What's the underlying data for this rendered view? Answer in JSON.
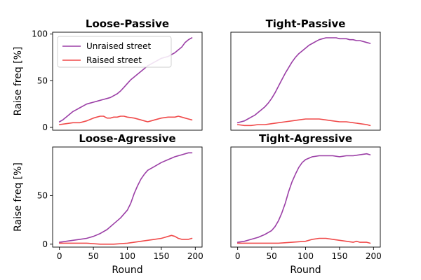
{
  "chart_data": [
    {
      "type": "line",
      "title": "Loose-Passive",
      "xlabel": "",
      "ylabel": "Raise freq [%]",
      "xlim": [
        -10,
        210
      ],
      "ylim": [
        -3,
        102
      ],
      "xticks": [],
      "yticks": [
        0,
        50,
        100
      ],
      "legend": "top-left",
      "series": [
        {
          "name": "Unraised street",
          "color": "#9b3fa6",
          "x": [
            0,
            5,
            10,
            15,
            20,
            25,
            30,
            35,
            40,
            45,
            50,
            55,
            60,
            65,
            70,
            75,
            80,
            85,
            90,
            95,
            100,
            105,
            110,
            115,
            120,
            125,
            130,
            135,
            140,
            145,
            150,
            155,
            160,
            165,
            170,
            175,
            180,
            185,
            190,
            195
          ],
          "y": [
            6,
            8,
            11,
            14,
            17,
            19,
            21,
            23,
            25,
            26,
            27,
            28,
            29,
            30,
            31,
            32,
            34,
            36,
            39,
            43,
            47,
            51,
            54,
            57,
            60,
            63,
            66,
            68,
            70,
            72,
            74,
            75,
            76,
            78,
            80,
            83,
            86,
            91,
            94,
            96
          ]
        },
        {
          "name": "Raised street",
          "color": "#f04a4a",
          "x": [
            0,
            10,
            20,
            30,
            40,
            50,
            55,
            60,
            65,
            70,
            75,
            80,
            85,
            90,
            95,
            100,
            110,
            120,
            125,
            130,
            135,
            140,
            150,
            160,
            165,
            170,
            175,
            180,
            185,
            190,
            195
          ],
          "y": [
            3,
            4,
            5,
            5,
            7,
            10,
            11,
            12,
            12,
            10,
            10,
            11,
            11,
            12,
            12,
            11,
            10,
            8,
            7,
            6,
            7,
            8,
            10,
            11,
            11,
            11,
            12,
            11,
            10,
            9,
            8
          ]
        }
      ]
    },
    {
      "type": "line",
      "title": "Tight-Passive",
      "xlabel": "",
      "ylabel": "",
      "xlim": [
        -10,
        210
      ],
      "ylim": [
        -3,
        102
      ],
      "xticks": [],
      "yticks": [],
      "series": [
        {
          "name": "Unraised street",
          "color": "#9b3fa6",
          "x": [
            0,
            5,
            10,
            15,
            20,
            25,
            30,
            35,
            40,
            45,
            50,
            55,
            60,
            65,
            70,
            75,
            80,
            85,
            90,
            95,
            100,
            105,
            110,
            115,
            120,
            125,
            130,
            135,
            140,
            145,
            150,
            155,
            160,
            165,
            170,
            175,
            180,
            185,
            190,
            195
          ],
          "y": [
            5,
            6,
            7,
            9,
            11,
            13,
            16,
            19,
            22,
            26,
            31,
            37,
            44,
            51,
            58,
            64,
            70,
            75,
            79,
            82,
            85,
            88,
            90,
            92,
            94,
            95,
            96,
            96,
            96,
            96,
            95,
            95,
            95,
            94,
            94,
            93,
            93,
            92,
            91,
            90
          ]
        },
        {
          "name": "Raised street",
          "color": "#f04a4a",
          "x": [
            0,
            10,
            20,
            30,
            40,
            50,
            60,
            70,
            80,
            90,
            100,
            110,
            120,
            130,
            140,
            150,
            160,
            170,
            180,
            190,
            195
          ],
          "y": [
            3,
            2,
            2,
            3,
            3,
            4,
            5,
            6,
            7,
            8,
            9,
            9,
            9,
            8,
            7,
            6,
            6,
            5,
            4,
            3,
            2
          ]
        }
      ]
    },
    {
      "type": "line",
      "title": "Loose-Agressive",
      "xlabel": "Round",
      "ylabel": "Raise freq [%]",
      "xlim": [
        -10,
        210
      ],
      "ylim": [
        -3,
        100
      ],
      "xticks": [
        0,
        50,
        100,
        150,
        200
      ],
      "yticks": [
        0,
        50
      ],
      "series": [
        {
          "name": "Unraised street",
          "color": "#9b3fa6",
          "x": [
            0,
            10,
            20,
            30,
            40,
            50,
            60,
            70,
            80,
            90,
            100,
            105,
            110,
            115,
            120,
            125,
            130,
            140,
            150,
            160,
            170,
            180,
            190,
            195
          ],
          "y": [
            2,
            3,
            4,
            5,
            6,
            8,
            11,
            15,
            21,
            27,
            35,
            42,
            52,
            60,
            67,
            72,
            76,
            80,
            84,
            87,
            90,
            92,
            94,
            94
          ]
        },
        {
          "name": "Raised street",
          "color": "#f04a4a",
          "x": [
            0,
            20,
            40,
            60,
            80,
            100,
            110,
            120,
            130,
            140,
            150,
            155,
            160,
            165,
            170,
            175,
            180,
            190,
            195
          ],
          "y": [
            1,
            1,
            1,
            0,
            0,
            1,
            2,
            3,
            4,
            5,
            6,
            7,
            8,
            9,
            8,
            6,
            5,
            5,
            6
          ]
        }
      ]
    },
    {
      "type": "line",
      "title": "Tight-Agressive",
      "xlabel": "Round",
      "ylabel": "",
      "xlim": [
        -10,
        210
      ],
      "ylim": [
        -3,
        100
      ],
      "xticks": [
        0,
        50,
        100,
        150,
        200
      ],
      "yticks": [],
      "series": [
        {
          "name": "Unraised street",
          "color": "#9b3fa6",
          "x": [
            0,
            10,
            20,
            30,
            40,
            50,
            55,
            60,
            65,
            70,
            75,
            80,
            85,
            90,
            95,
            100,
            110,
            120,
            130,
            140,
            150,
            160,
            170,
            180,
            190,
            195
          ],
          "y": [
            2,
            3,
            5,
            7,
            10,
            14,
            18,
            24,
            32,
            42,
            54,
            64,
            72,
            79,
            84,
            87,
            90,
            91,
            91,
            91,
            90,
            91,
            91,
            92,
            93,
            92
          ]
        },
        {
          "name": "Raised street",
          "color": "#f04a4a",
          "x": [
            0,
            20,
            40,
            60,
            80,
            100,
            110,
            120,
            130,
            140,
            150,
            160,
            170,
            175,
            180,
            190,
            195
          ],
          "y": [
            1,
            1,
            1,
            1,
            2,
            3,
            5,
            6,
            6,
            5,
            4,
            3,
            2,
            3,
            2,
            2,
            1
          ]
        }
      ]
    }
  ]
}
